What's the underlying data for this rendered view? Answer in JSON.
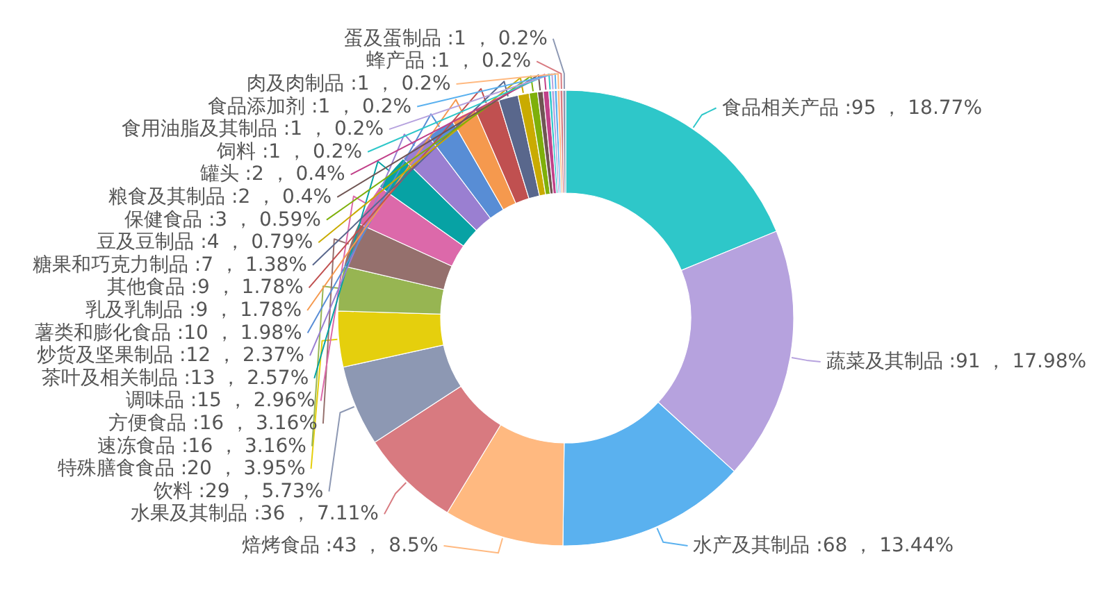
{
  "chart_data": {
    "type": "donut",
    "categories": [
      "食品相关产品",
      "蔬菜及其制品",
      "水产及其制品",
      "焙烤食品",
      "水果及其制品",
      "饮料",
      "特殊膳食食品",
      "速冻食品",
      "方便食品",
      "调味品",
      "茶叶及相关制品",
      "炒货及坚果制品",
      "薯类和膨化食品",
      "乳及乳制品",
      "其他食品",
      "糖果和巧克力制品",
      "豆及豆制品",
      "保健食品",
      "粮食及其制品",
      "罐头",
      "饲料",
      "食用油脂及其制品",
      "食品添加剂",
      "肉及肉制品",
      "蜂产品",
      "蛋及蛋制品"
    ],
    "values": [
      95,
      91,
      68,
      43,
      36,
      29,
      20,
      16,
      16,
      15,
      13,
      12,
      10,
      9,
      9,
      7,
      4,
      3,
      2,
      2,
      1,
      1,
      1,
      1,
      1,
      1
    ],
    "value_labels": [
      "95 ， 18.77%",
      "91 ， 17.98%",
      "68 ， 13.44%",
      "43 ， 8.5%",
      "36 ， 7.11%",
      "29 ， 5.73%",
      "20 ， 3.95%",
      "16 ， 3.16%",
      "16 ， 3.16%",
      "15 ， 2.96%",
      "13 ， 2.57%",
      "12 ， 2.37%",
      "10 ， 1.98%",
      "9 ， 1.78%",
      "9 ， 1.78%",
      "7 ， 1.38%",
      "4 ， 0.79%",
      "3 ， 0.59%",
      "2 ， 0.4%",
      "2 ， 0.4%",
      "1 ， 0.2%",
      "1 ， 0.2%",
      "1 ， 0.2%",
      "1 ， 0.2%",
      "1 ， 0.2%",
      "1 ， 0.2%"
    ],
    "colors": [
      "#2ec7c9",
      "#b6a2de",
      "#5ab1ef",
      "#ffb980",
      "#d87a80",
      "#8d98b3",
      "#e5cf0d",
      "#97b552",
      "#95706d",
      "#dc69aa",
      "#07a2a4",
      "#9a7fd1",
      "#588dd5",
      "#f5994e",
      "#c05050",
      "#59678c",
      "#c9ab00",
      "#7eb00a",
      "#6f5553",
      "#c14089",
      "#2ec7c9",
      "#b6a2de",
      "#5ab1ef",
      "#ffb980",
      "#d87a80",
      "#8d98b3"
    ],
    "legend": false
  }
}
